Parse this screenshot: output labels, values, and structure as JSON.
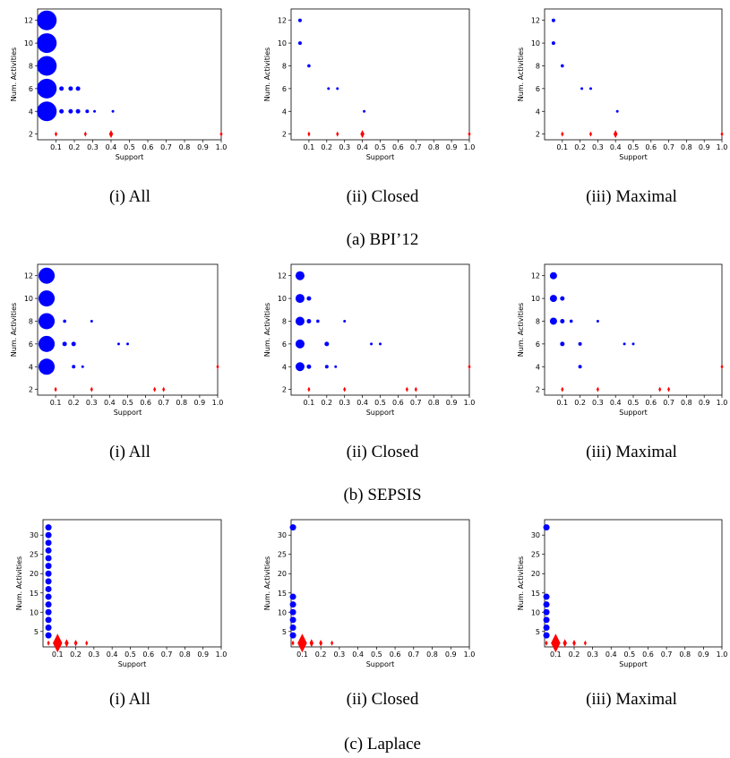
{
  "captions": {
    "rows": [
      "(a) BPI’12",
      "(b) SEPSIS",
      "(c) Laplace"
    ],
    "panels": [
      "(i) All",
      "(ii) Closed",
      "(iii) Maximal"
    ]
  },
  "colors": {
    "series_large": "#0000ff",
    "series_small": "#ff0000"
  },
  "chart_data": [
    {
      "type": "scatter",
      "xlabel": "Support",
      "ylabel": "Num. Activities",
      "xlim": [
        0,
        1.0
      ],
      "xticks": [
        0.1,
        0.2,
        0.3,
        0.4,
        0.5,
        0.6,
        0.7,
        0.8,
        0.9,
        1.0
      ],
      "ylim": [
        1.5,
        13
      ],
      "yticks": [
        2,
        4,
        6,
        8,
        10,
        12
      ],
      "points": [
        {
          "x": 0.05,
          "y": 12,
          "size": 11,
          "color": "blue"
        },
        {
          "x": 0.05,
          "y": 10,
          "size": 11,
          "color": "blue"
        },
        {
          "x": 0.05,
          "y": 8,
          "size": 11,
          "color": "blue"
        },
        {
          "x": 0.05,
          "y": 6,
          "size": 11,
          "color": "blue"
        },
        {
          "x": 0.05,
          "y": 4,
          "size": 11,
          "color": "blue"
        },
        {
          "x": 0.13,
          "y": 6,
          "size": 2.5,
          "color": "blue"
        },
        {
          "x": 0.18,
          "y": 6,
          "size": 2.5,
          "color": "blue"
        },
        {
          "x": 0.22,
          "y": 6,
          "size": 2.5,
          "color": "blue"
        },
        {
          "x": 0.13,
          "y": 4,
          "size": 2.5,
          "color": "blue"
        },
        {
          "x": 0.18,
          "y": 4,
          "size": 2.5,
          "color": "blue"
        },
        {
          "x": 0.22,
          "y": 4,
          "size": 2.5,
          "color": "blue"
        },
        {
          "x": 0.27,
          "y": 4,
          "size": 2,
          "color": "blue"
        },
        {
          "x": 0.31,
          "y": 4,
          "size": 1.5,
          "color": "blue"
        },
        {
          "x": 0.41,
          "y": 4,
          "size": 1.5,
          "color": "blue"
        },
        {
          "x": 0.1,
          "y": 2,
          "size": 2,
          "color": "red"
        },
        {
          "x": 0.26,
          "y": 2,
          "size": 2,
          "color": "red"
        },
        {
          "x": 0.4,
          "y": 2,
          "size": 3,
          "color": "red"
        },
        {
          "x": 1.0,
          "y": 2,
          "size": 2,
          "color": "red"
        }
      ]
    },
    {
      "type": "scatter",
      "xlabel": "Support",
      "ylabel": "Num. Activities",
      "xlim": [
        0,
        1.0
      ],
      "xticks": [
        0.1,
        0.2,
        0.3,
        0.4,
        0.5,
        0.6,
        0.7,
        0.8,
        0.9,
        1.0
      ],
      "ylim": [
        1.5,
        13
      ],
      "yticks": [
        2,
        4,
        6,
        8,
        10,
        12
      ],
      "points": [
        {
          "x": 0.05,
          "y": 12,
          "size": 2,
          "color": "blue"
        },
        {
          "x": 0.05,
          "y": 10,
          "size": 2,
          "color": "blue"
        },
        {
          "x": 0.1,
          "y": 8,
          "size": 1.8,
          "color": "blue"
        },
        {
          "x": 0.21,
          "y": 6,
          "size": 1.5,
          "color": "blue"
        },
        {
          "x": 0.26,
          "y": 6,
          "size": 1.5,
          "color": "blue"
        },
        {
          "x": 0.41,
          "y": 4,
          "size": 1.5,
          "color": "blue"
        },
        {
          "x": 0.1,
          "y": 2,
          "size": 2,
          "color": "red"
        },
        {
          "x": 0.26,
          "y": 2,
          "size": 2,
          "color": "red"
        },
        {
          "x": 0.4,
          "y": 2,
          "size": 3,
          "color": "red"
        },
        {
          "x": 1.0,
          "y": 2,
          "size": 2,
          "color": "red"
        }
      ]
    },
    {
      "type": "scatter",
      "xlabel": "Support",
      "ylabel": "Num. Activities",
      "xlim": [
        0,
        1.0
      ],
      "xticks": [
        0.1,
        0.2,
        0.3,
        0.4,
        0.5,
        0.6,
        0.7,
        0.8,
        0.9,
        1.0
      ],
      "ylim": [
        1.5,
        13
      ],
      "yticks": [
        2,
        4,
        6,
        8,
        10,
        12
      ],
      "points": [
        {
          "x": 0.05,
          "y": 12,
          "size": 2,
          "color": "blue"
        },
        {
          "x": 0.05,
          "y": 10,
          "size": 2,
          "color": "blue"
        },
        {
          "x": 0.1,
          "y": 8,
          "size": 1.8,
          "color": "blue"
        },
        {
          "x": 0.21,
          "y": 6,
          "size": 1.5,
          "color": "blue"
        },
        {
          "x": 0.26,
          "y": 6,
          "size": 1.5,
          "color": "blue"
        },
        {
          "x": 0.41,
          "y": 4,
          "size": 1.5,
          "color": "blue"
        },
        {
          "x": 0.1,
          "y": 2,
          "size": 2,
          "color": "red"
        },
        {
          "x": 0.26,
          "y": 2,
          "size": 2,
          "color": "red"
        },
        {
          "x": 0.4,
          "y": 2,
          "size": 3,
          "color": "red"
        },
        {
          "x": 1.0,
          "y": 2,
          "size": 2,
          "color": "red"
        }
      ]
    },
    {
      "type": "scatter",
      "xlabel": "Support",
      "ylabel": "Num. Activities",
      "xlim": [
        0,
        1.0
      ],
      "xticks": [
        0.1,
        0.2,
        0.3,
        0.4,
        0.5,
        0.6,
        0.7,
        0.8,
        0.9,
        1.0
      ],
      "ylim": [
        1.5,
        13
      ],
      "yticks": [
        2,
        4,
        6,
        8,
        10,
        12
      ],
      "points": [
        {
          "x": 0.05,
          "y": 12,
          "size": 9,
          "color": "blue"
        },
        {
          "x": 0.05,
          "y": 10,
          "size": 9,
          "color": "blue"
        },
        {
          "x": 0.05,
          "y": 8,
          "size": 9,
          "color": "blue"
        },
        {
          "x": 0.05,
          "y": 6,
          "size": 9,
          "color": "blue"
        },
        {
          "x": 0.05,
          "y": 4,
          "size": 9,
          "color": "blue"
        },
        {
          "x": 0.15,
          "y": 8,
          "size": 1.8,
          "color": "blue"
        },
        {
          "x": 0.3,
          "y": 8,
          "size": 1.5,
          "color": "blue"
        },
        {
          "x": 0.15,
          "y": 6,
          "size": 2.5,
          "color": "blue"
        },
        {
          "x": 0.2,
          "y": 6,
          "size": 2.5,
          "color": "blue"
        },
        {
          "x": 0.45,
          "y": 6,
          "size": 1.5,
          "color": "blue"
        },
        {
          "x": 0.5,
          "y": 6,
          "size": 1.5,
          "color": "blue"
        },
        {
          "x": 0.2,
          "y": 4,
          "size": 2,
          "color": "blue"
        },
        {
          "x": 0.25,
          "y": 4,
          "size": 1.5,
          "color": "blue"
        },
        {
          "x": 0.1,
          "y": 2,
          "size": 2,
          "color": "red"
        },
        {
          "x": 0.3,
          "y": 2,
          "size": 2,
          "color": "red"
        },
        {
          "x": 0.65,
          "y": 2,
          "size": 2,
          "color": "red"
        },
        {
          "x": 0.7,
          "y": 2,
          "size": 2,
          "color": "red"
        },
        {
          "x": 1.0,
          "y": 4,
          "size": 2,
          "color": "red"
        }
      ]
    },
    {
      "type": "scatter",
      "xlabel": "Support",
      "ylabel": "Num. Activities",
      "xlim": [
        0,
        1.0
      ],
      "xticks": [
        0.1,
        0.2,
        0.3,
        0.4,
        0.5,
        0.6,
        0.7,
        0.8,
        0.9,
        1.0
      ],
      "ylim": [
        1.5,
        13
      ],
      "yticks": [
        2,
        4,
        6,
        8,
        10,
        12
      ],
      "points": [
        {
          "x": 0.05,
          "y": 12,
          "size": 5,
          "color": "blue"
        },
        {
          "x": 0.05,
          "y": 10,
          "size": 5,
          "color": "blue"
        },
        {
          "x": 0.1,
          "y": 10,
          "size": 2.5,
          "color": "blue"
        },
        {
          "x": 0.05,
          "y": 8,
          "size": 5,
          "color": "blue"
        },
        {
          "x": 0.1,
          "y": 8,
          "size": 2.5,
          "color": "blue"
        },
        {
          "x": 0.15,
          "y": 8,
          "size": 1.8,
          "color": "blue"
        },
        {
          "x": 0.3,
          "y": 8,
          "size": 1.5,
          "color": "blue"
        },
        {
          "x": 0.05,
          "y": 6,
          "size": 5,
          "color": "blue"
        },
        {
          "x": 0.2,
          "y": 6,
          "size": 2.5,
          "color": "blue"
        },
        {
          "x": 0.45,
          "y": 6,
          "size": 1.5,
          "color": "blue"
        },
        {
          "x": 0.5,
          "y": 6,
          "size": 1.5,
          "color": "blue"
        },
        {
          "x": 0.05,
          "y": 4,
          "size": 5,
          "color": "blue"
        },
        {
          "x": 0.1,
          "y": 4,
          "size": 2.5,
          "color": "blue"
        },
        {
          "x": 0.2,
          "y": 4,
          "size": 2,
          "color": "blue"
        },
        {
          "x": 0.25,
          "y": 4,
          "size": 1.5,
          "color": "blue"
        },
        {
          "x": 0.1,
          "y": 2,
          "size": 2,
          "color": "red"
        },
        {
          "x": 0.3,
          "y": 2,
          "size": 2,
          "color": "red"
        },
        {
          "x": 0.65,
          "y": 2,
          "size": 2,
          "color": "red"
        },
        {
          "x": 0.7,
          "y": 2,
          "size": 2,
          "color": "red"
        },
        {
          "x": 1.0,
          "y": 4,
          "size": 2,
          "color": "red"
        }
      ]
    },
    {
      "type": "scatter",
      "xlabel": "Support",
      "ylabel": "Num. Activities",
      "xlim": [
        0,
        1.0
      ],
      "xticks": [
        0.1,
        0.2,
        0.3,
        0.4,
        0.5,
        0.6,
        0.7,
        0.8,
        0.9,
        1.0
      ],
      "ylim": [
        1.5,
        13
      ],
      "yticks": [
        2,
        4,
        6,
        8,
        10,
        12
      ],
      "points": [
        {
          "x": 0.05,
          "y": 12,
          "size": 4,
          "color": "blue"
        },
        {
          "x": 0.05,
          "y": 10,
          "size": 4,
          "color": "blue"
        },
        {
          "x": 0.1,
          "y": 10,
          "size": 2.5,
          "color": "blue"
        },
        {
          "x": 0.05,
          "y": 8,
          "size": 4,
          "color": "blue"
        },
        {
          "x": 0.1,
          "y": 8,
          "size": 2.5,
          "color": "blue"
        },
        {
          "x": 0.15,
          "y": 8,
          "size": 1.8,
          "color": "blue"
        },
        {
          "x": 0.3,
          "y": 8,
          "size": 1.5,
          "color": "blue"
        },
        {
          "x": 0.1,
          "y": 6,
          "size": 2.5,
          "color": "blue"
        },
        {
          "x": 0.2,
          "y": 6,
          "size": 2,
          "color": "blue"
        },
        {
          "x": 0.45,
          "y": 6,
          "size": 1.5,
          "color": "blue"
        },
        {
          "x": 0.5,
          "y": 6,
          "size": 1.5,
          "color": "blue"
        },
        {
          "x": 0.2,
          "y": 4,
          "size": 2,
          "color": "blue"
        },
        {
          "x": 0.1,
          "y": 2,
          "size": 2,
          "color": "red"
        },
        {
          "x": 0.3,
          "y": 2,
          "size": 2,
          "color": "red"
        },
        {
          "x": 0.65,
          "y": 2,
          "size": 2,
          "color": "red"
        },
        {
          "x": 0.7,
          "y": 2,
          "size": 2,
          "color": "red"
        },
        {
          "x": 1.0,
          "y": 4,
          "size": 2,
          "color": "red"
        }
      ]
    },
    {
      "type": "scatter",
      "xlabel": "Support",
      "ylabel": "Num. Activities",
      "xlim": [
        0.02,
        1.0
      ],
      "xticks": [
        0.1,
        0.2,
        0.3,
        0.4,
        0.5,
        0.6,
        0.7,
        0.8,
        0.9,
        1.0
      ],
      "ylim": [
        1,
        34
      ],
      "yticks": [
        5,
        10,
        15,
        20,
        25,
        30
      ],
      "points": [
        {
          "x": 0.05,
          "y": 32,
          "size": 3.5,
          "color": "blue"
        },
        {
          "x": 0.05,
          "y": 30,
          "size": 3.5,
          "color": "blue"
        },
        {
          "x": 0.05,
          "y": 28,
          "size": 3.5,
          "color": "blue"
        },
        {
          "x": 0.05,
          "y": 26,
          "size": 3.5,
          "color": "blue"
        },
        {
          "x": 0.05,
          "y": 24,
          "size": 3.5,
          "color": "blue"
        },
        {
          "x": 0.05,
          "y": 22,
          "size": 3.5,
          "color": "blue"
        },
        {
          "x": 0.05,
          "y": 20,
          "size": 3.5,
          "color": "blue"
        },
        {
          "x": 0.05,
          "y": 18,
          "size": 3.5,
          "color": "blue"
        },
        {
          "x": 0.05,
          "y": 16,
          "size": 3.5,
          "color": "blue"
        },
        {
          "x": 0.05,
          "y": 14,
          "size": 3.5,
          "color": "blue"
        },
        {
          "x": 0.05,
          "y": 12,
          "size": 3.5,
          "color": "blue"
        },
        {
          "x": 0.05,
          "y": 10,
          "size": 3.5,
          "color": "blue"
        },
        {
          "x": 0.05,
          "y": 8,
          "size": 3.5,
          "color": "blue"
        },
        {
          "x": 0.05,
          "y": 6,
          "size": 3.5,
          "color": "blue"
        },
        {
          "x": 0.05,
          "y": 4,
          "size": 3.5,
          "color": "blue"
        },
        {
          "x": 0.05,
          "y": 2,
          "size": 2,
          "color": "red"
        },
        {
          "x": 0.1,
          "y": 2,
          "size": 7,
          "color": "red"
        },
        {
          "x": 0.15,
          "y": 2,
          "size": 3,
          "color": "red"
        },
        {
          "x": 0.2,
          "y": 2,
          "size": 2.5,
          "color": "red"
        },
        {
          "x": 0.26,
          "y": 2,
          "size": 2,
          "color": "red"
        }
      ]
    },
    {
      "type": "scatter",
      "xlabel": "Support",
      "ylabel": "Num. Activities",
      "xlim": [
        0.04,
        1.0
      ],
      "xticks": [
        0.1,
        0.2,
        0.3,
        0.4,
        0.5,
        0.6,
        0.7,
        0.8,
        0.9,
        1.0
      ],
      "ylim": [
        1,
        34
      ],
      "yticks": [
        5,
        10,
        15,
        20,
        25,
        30
      ],
      "points": [
        {
          "x": 0.05,
          "y": 32,
          "size": 3.5,
          "color": "blue"
        },
        {
          "x": 0.05,
          "y": 14,
          "size": 3.5,
          "color": "blue"
        },
        {
          "x": 0.05,
          "y": 12,
          "size": 3.5,
          "color": "blue"
        },
        {
          "x": 0.05,
          "y": 10,
          "size": 3.5,
          "color": "blue"
        },
        {
          "x": 0.05,
          "y": 8,
          "size": 3.5,
          "color": "blue"
        },
        {
          "x": 0.05,
          "y": 6,
          "size": 3.5,
          "color": "blue"
        },
        {
          "x": 0.05,
          "y": 4,
          "size": 3.5,
          "color": "blue"
        },
        {
          "x": 0.05,
          "y": 2,
          "size": 2,
          "color": "red"
        },
        {
          "x": 0.1,
          "y": 2,
          "size": 7,
          "color": "red"
        },
        {
          "x": 0.15,
          "y": 2,
          "size": 3,
          "color": "red"
        },
        {
          "x": 0.2,
          "y": 2,
          "size": 2.5,
          "color": "red"
        },
        {
          "x": 0.26,
          "y": 2,
          "size": 2,
          "color": "red"
        }
      ]
    },
    {
      "type": "scatter",
      "xlabel": "Support",
      "ylabel": "Num. Activities",
      "xlim": [
        0.04,
        1.0
      ],
      "xticks": [
        0.1,
        0.2,
        0.3,
        0.4,
        0.5,
        0.6,
        0.7,
        0.8,
        0.9,
        1.0
      ],
      "ylim": [
        1,
        34
      ],
      "yticks": [
        5,
        10,
        15,
        20,
        25,
        30
      ],
      "points": [
        {
          "x": 0.05,
          "y": 32,
          "size": 3.5,
          "color": "blue"
        },
        {
          "x": 0.05,
          "y": 14,
          "size": 3.5,
          "color": "blue"
        },
        {
          "x": 0.05,
          "y": 12,
          "size": 3.5,
          "color": "blue"
        },
        {
          "x": 0.05,
          "y": 10,
          "size": 3.5,
          "color": "blue"
        },
        {
          "x": 0.05,
          "y": 8,
          "size": 3.5,
          "color": "blue"
        },
        {
          "x": 0.05,
          "y": 6,
          "size": 3.5,
          "color": "blue"
        },
        {
          "x": 0.05,
          "y": 4,
          "size": 3.5,
          "color": "blue"
        },
        {
          "x": 0.05,
          "y": 2,
          "size": 2,
          "color": "red"
        },
        {
          "x": 0.1,
          "y": 2,
          "size": 7,
          "color": "red"
        },
        {
          "x": 0.15,
          "y": 2,
          "size": 3,
          "color": "red"
        },
        {
          "x": 0.2,
          "y": 2,
          "size": 2.5,
          "color": "red"
        },
        {
          "x": 0.26,
          "y": 2,
          "size": 2,
          "color": "red"
        }
      ]
    }
  ]
}
